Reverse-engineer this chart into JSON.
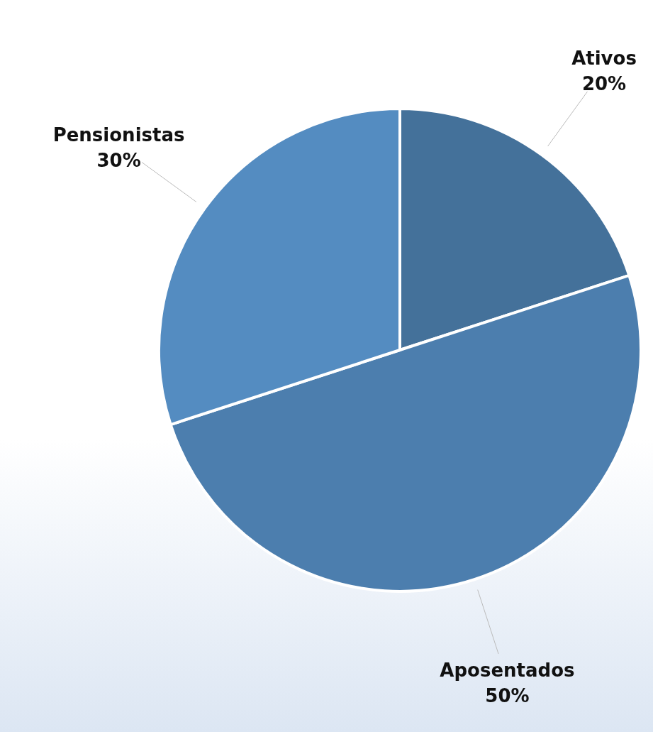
{
  "chart_data": {
    "type": "pie",
    "categories": [
      "Ativos",
      "Aposentados",
      "Pensionistas"
    ],
    "values": [
      20,
      50,
      30
    ],
    "colors": [
      "#44719a",
      "#4c7eae",
      "#548cc1"
    ],
    "value_labels": [
      "20%",
      "50%",
      "30%"
    ],
    "legend": false
  }
}
